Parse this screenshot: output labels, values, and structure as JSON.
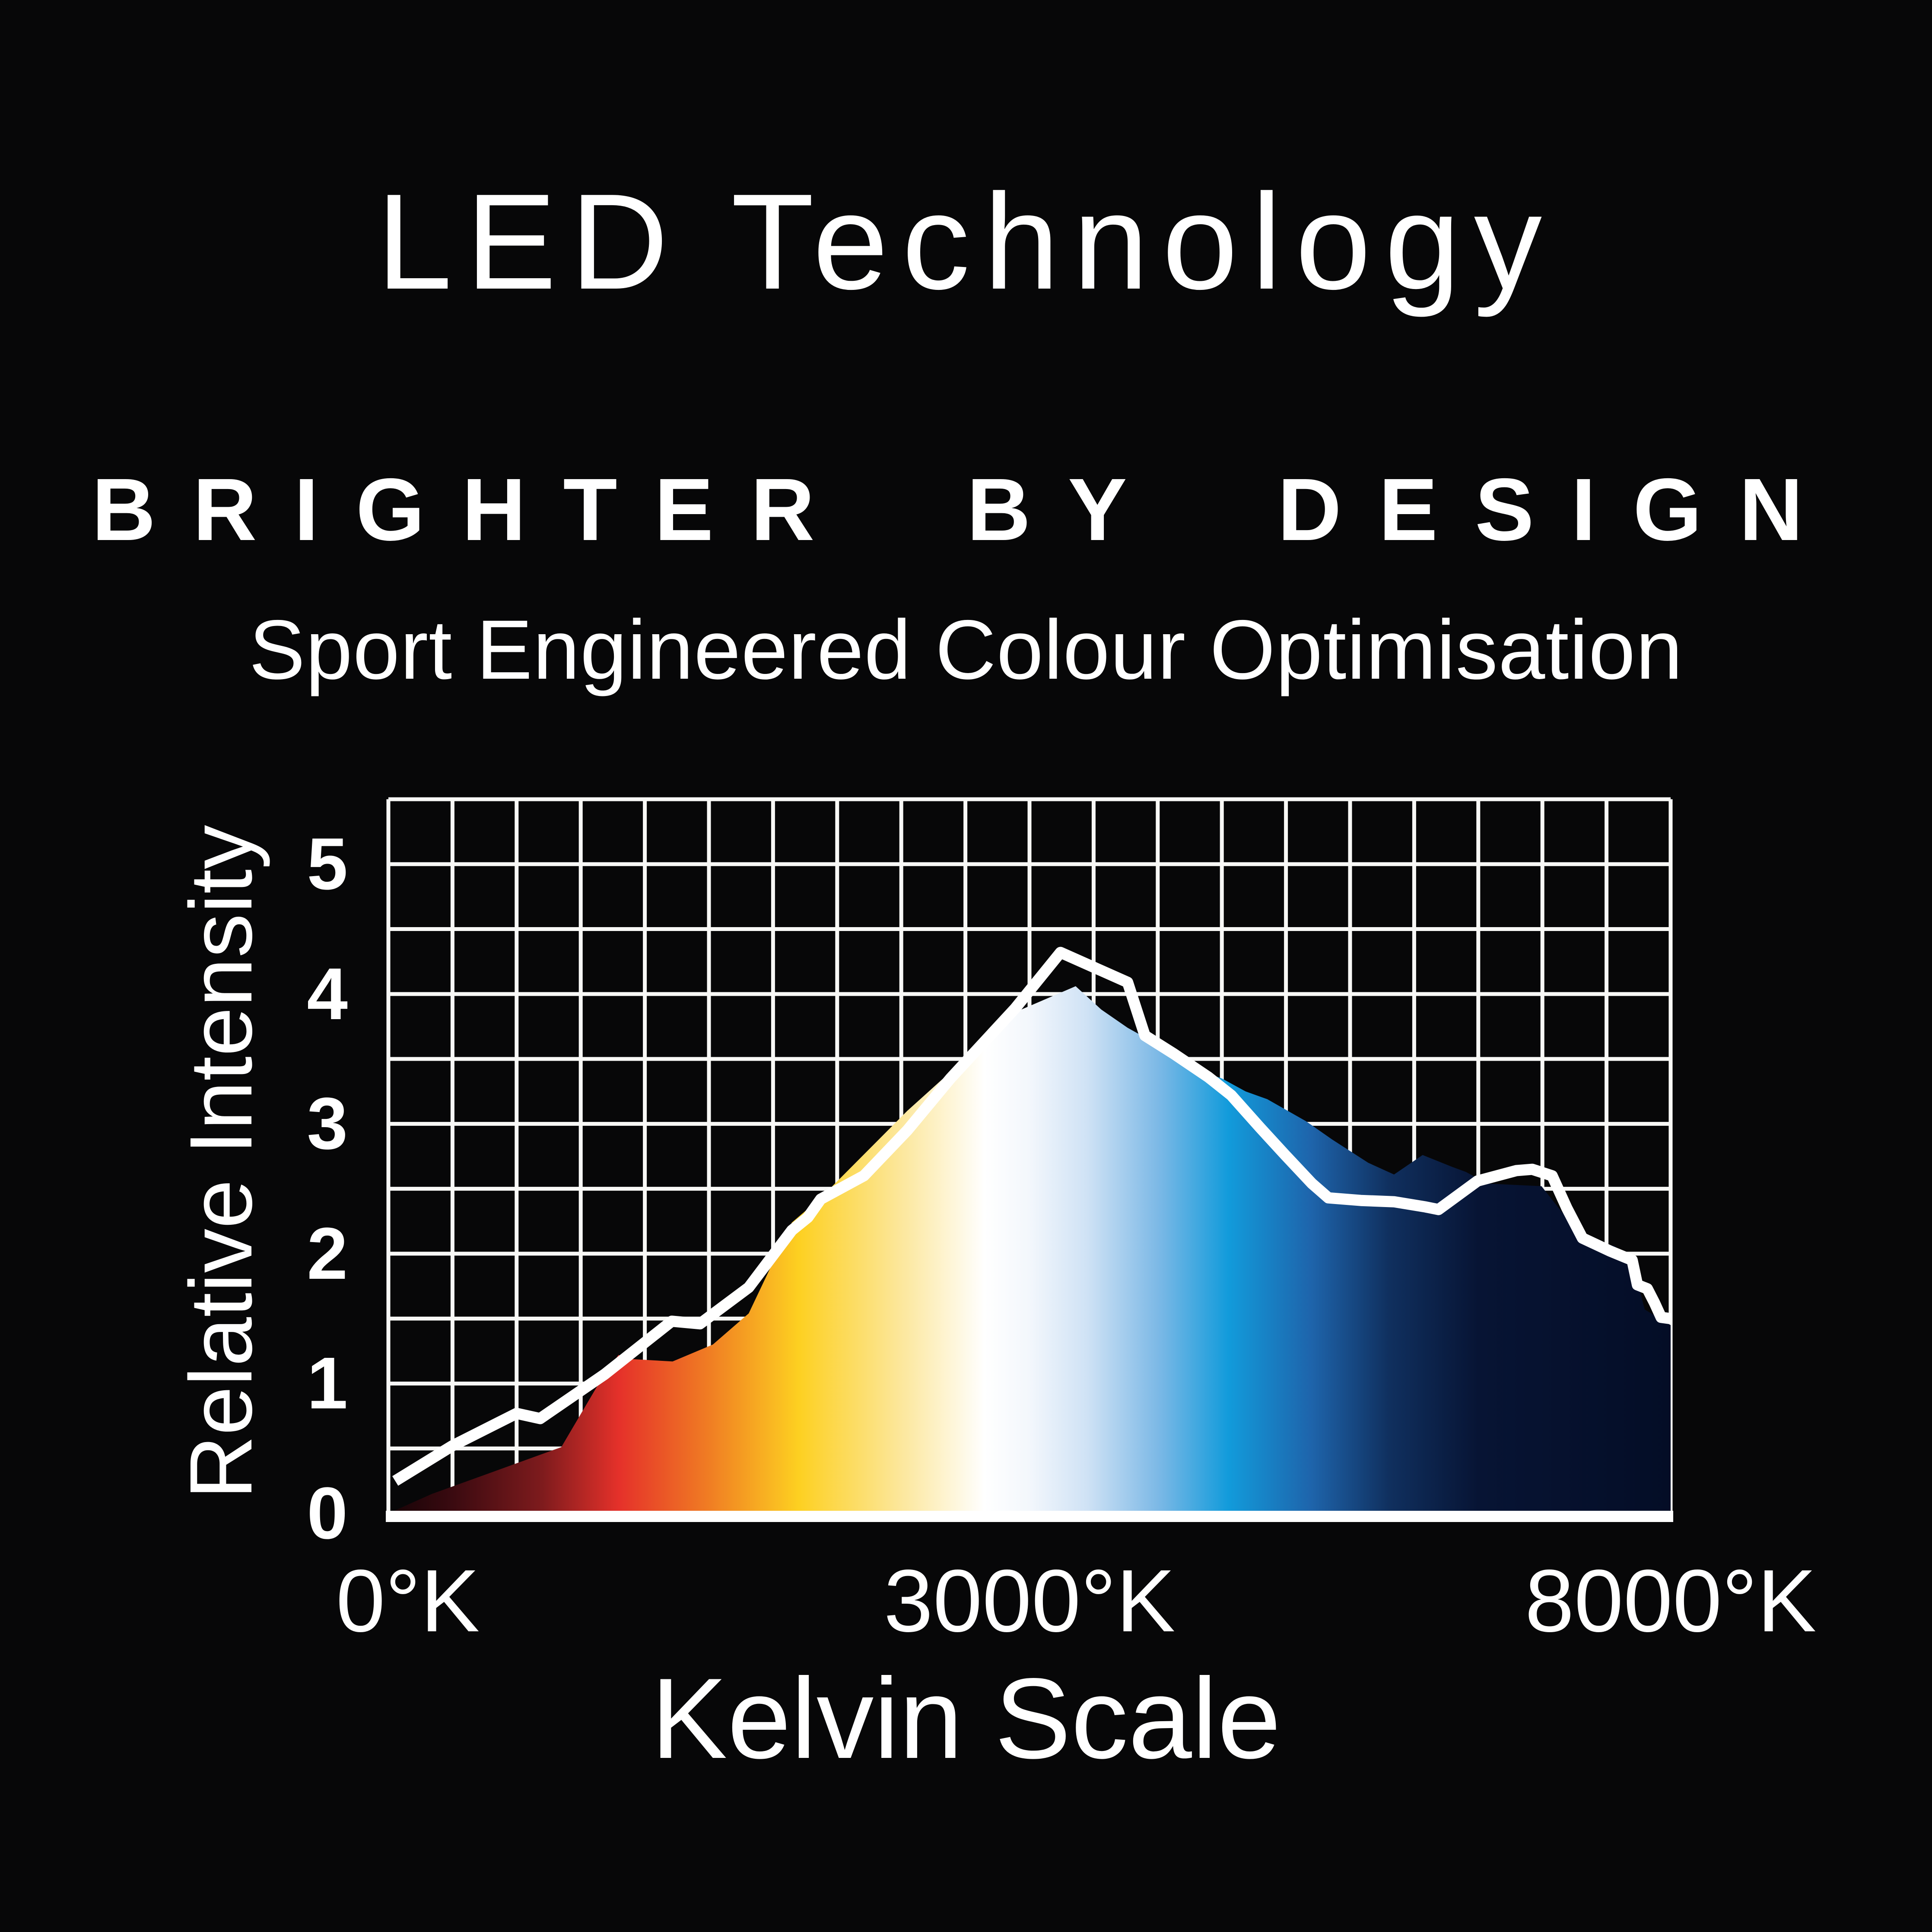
{
  "header": {
    "title": "LED Technology",
    "tagline": "BRIGHTER BY DESIGN",
    "subtitle": "Sport Engineered Colour Optimisation"
  },
  "chart_data": {
    "type": "area",
    "title": "",
    "x_axis": {
      "title": "Kelvin Scale",
      "ticks": [
        {
          "label": "0°K",
          "kelvin": 0,
          "pos": 0.0
        },
        {
          "label": "3000°K",
          "kelvin": 3000,
          "pos": 0.5
        },
        {
          "label": "8000°K",
          "kelvin": 8000,
          "pos": 1.0
        }
      ],
      "grid_columns": 20,
      "note": "x scale is piecewise linear: 0K at left edge, 3000K at centre, 8000K at right edge"
    },
    "y_axis": {
      "title": "Relative Intensity",
      "tick_values": [
        0,
        1,
        2,
        3,
        4,
        5
      ],
      "max": 5.5,
      "grid_rows": 11,
      "grid": "on"
    },
    "legend": "none",
    "series": [
      {
        "name": "spectrum-intensity-area",
        "type": "area",
        "fill": "kelvin-spectrum-gradient",
        "points": [
          [
            0,
            0
          ],
          [
            204,
            0.15
          ],
          [
            507,
            0.33
          ],
          [
            809,
            0.51
          ],
          [
            1013,
            1.08
          ],
          [
            1077,
            1.22
          ],
          [
            1120,
            1.19
          ],
          [
            1330,
            1.17
          ],
          [
            1518,
            1.3
          ],
          [
            1686,
            1.54
          ],
          [
            1888,
            2.24
          ],
          [
            2023,
            2.43
          ],
          [
            2428,
            3.1
          ],
          [
            2731,
            3.55
          ],
          [
            2933,
            3.86
          ],
          [
            3360,
            4.06
          ],
          [
            3560,
            3.88
          ],
          [
            3765,
            3.74
          ],
          [
            4001,
            3.61
          ],
          [
            4237,
            3.44
          ],
          [
            4500,
            3.35
          ],
          [
            4685,
            3.25
          ],
          [
            4854,
            3.19
          ],
          [
            5157,
            3.02
          ],
          [
            5359,
            2.88
          ],
          [
            5642,
            2.7
          ],
          [
            5843,
            2.61
          ],
          [
            6066,
            2.76
          ],
          [
            6292,
            2.67
          ],
          [
            6403,
            2.63
          ],
          [
            6572,
            2.54
          ],
          [
            6993,
            2.52
          ],
          [
            7144,
            2.33
          ],
          [
            7360,
            2.1
          ],
          [
            7562,
            2.06
          ],
          [
            7700,
            1.95
          ],
          [
            7798,
            1.57
          ],
          [
            8000,
            1.45
          ]
        ]
      },
      {
        "name": "reference-intensity-line",
        "type": "line",
        "stroke": "#ffffff",
        "points": [
          [
            32,
            0.25
          ],
          [
            299,
            0.52
          ],
          [
            600,
            0.77
          ],
          [
            710,
            0.73
          ],
          [
            1011,
            1.07
          ],
          [
            1326,
            1.48
          ],
          [
            1458,
            1.46
          ],
          [
            1686,
            1.74
          ],
          [
            1888,
            2.18
          ],
          [
            1963,
            2.28
          ],
          [
            2023,
            2.42
          ],
          [
            2225,
            2.6
          ],
          [
            2428,
            2.95
          ],
          [
            2630,
            3.35
          ],
          [
            2933,
            3.89
          ],
          [
            3242,
            4.32
          ],
          [
            3765,
            4.09
          ],
          [
            3900,
            3.68
          ],
          [
            4125,
            3.54
          ],
          [
            4395,
            3.36
          ],
          [
            4573,
            3.22
          ],
          [
            4799,
            2.97
          ],
          [
            4994,
            2.76
          ],
          [
            5203,
            2.54
          ],
          [
            5331,
            2.43
          ],
          [
            5584,
            2.41
          ],
          [
            5843,
            2.4
          ],
          [
            6089,
            2.36
          ],
          [
            6190,
            2.34
          ],
          [
            6494,
            2.56
          ],
          [
            6797,
            2.64
          ],
          [
            6921,
            2.65
          ],
          [
            7076,
            2.6
          ],
          [
            7191,
            2.35
          ],
          [
            7312,
            2.12
          ],
          [
            7528,
            2.02
          ],
          [
            7700,
            1.95
          ],
          [
            7741,
            1.76
          ],
          [
            7818,
            1.73
          ],
          [
            7875,
            1.62
          ],
          [
            7926,
            1.51
          ],
          [
            8000,
            1.5
          ]
        ]
      }
    ],
    "gradient_stops": [
      [
        0.0,
        "#150306"
      ],
      [
        0.05,
        "#3a0a10"
      ],
      [
        0.12,
        "#7e1b1d"
      ],
      [
        0.18,
        "#e5312a"
      ],
      [
        0.25,
        "#f07d23"
      ],
      [
        0.32,
        "#fdd021"
      ],
      [
        0.4,
        "#fce79c"
      ],
      [
        0.465,
        "#ffffff"
      ],
      [
        0.5,
        "#f3f7fc"
      ],
      [
        0.545,
        "#cfe2f5"
      ],
      [
        0.6,
        "#7db9e6"
      ],
      [
        0.655,
        "#129bdb"
      ],
      [
        0.72,
        "#1e64ab"
      ],
      [
        0.78,
        "#10305f"
      ],
      [
        0.85,
        "#071434"
      ],
      [
        1.0,
        "#040d26"
      ]
    ],
    "colors": {
      "background": "#070708",
      "grid": "#f8f8f6",
      "axis": "#ffffff",
      "line": "#ffffff",
      "text": "#ffffff"
    }
  }
}
